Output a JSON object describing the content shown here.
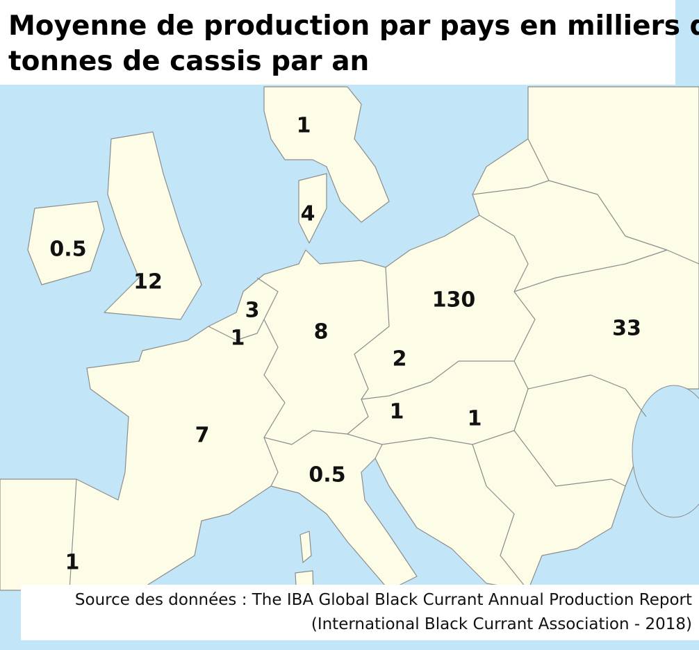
{
  "title": [
    "Moyenne de production par pays en milliers de",
    "tonnes de cassis par an"
  ],
  "labels": [
    1,
    4,
    0.5,
    12,
    3,
    1,
    8,
    130,
    33,
    2,
    1,
    1,
    7,
    0.5,
    1
  ],
  "source": [
    "Source des données : The IBA Global Black Currant Annual Production Report",
    "(International Black Currant Association - 2018)"
  ]
}
